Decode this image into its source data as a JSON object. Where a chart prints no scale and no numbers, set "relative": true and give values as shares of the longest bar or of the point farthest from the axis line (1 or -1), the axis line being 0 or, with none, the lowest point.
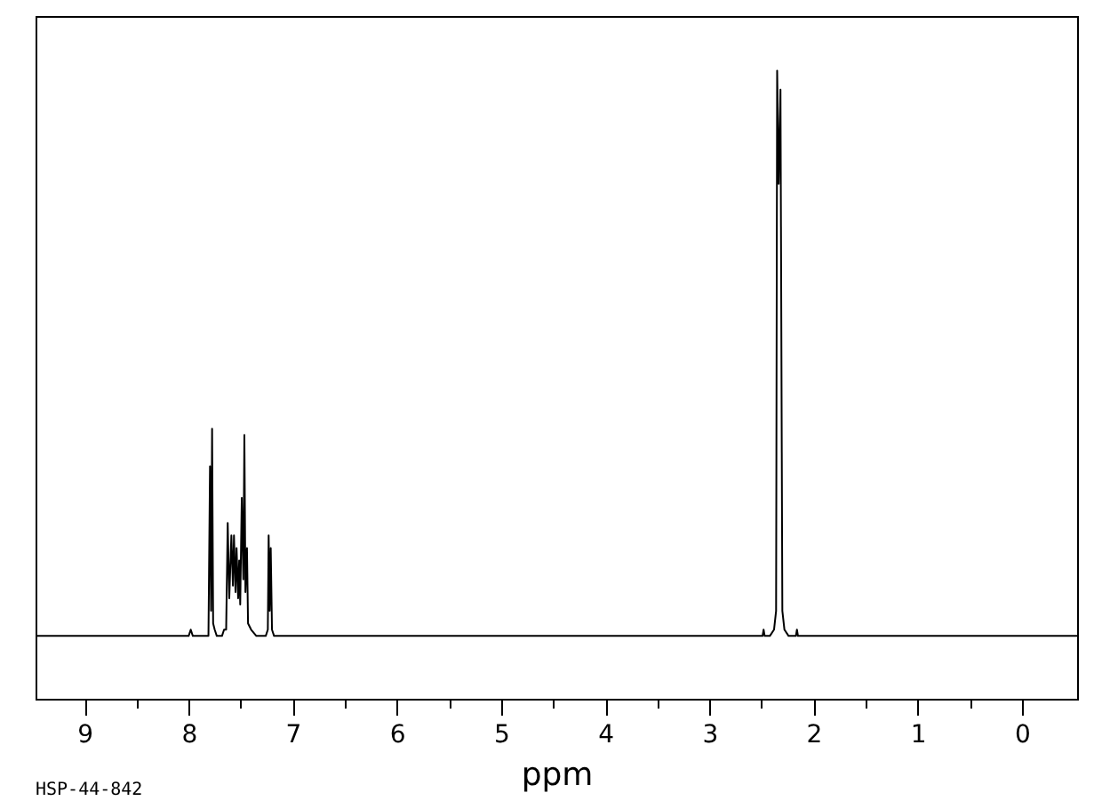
{
  "chart_data": {
    "type": "line",
    "relative": true,
    "xlabel": "ppm",
    "annotations": [
      "HSP-44-842"
    ],
    "xlim": [
      9.47,
      -0.53
    ],
    "xticks": [
      9,
      {
        "value": 8.5,
        "label": null
      },
      8,
      {
        "value": 7.5,
        "label": null
      },
      7,
      {
        "value": 6.5,
        "label": null
      },
      6,
      {
        "value": 5.5,
        "label": null
      },
      5,
      {
        "value": 4.5,
        "label": null
      },
      4,
      {
        "value": 3.5,
        "label": null
      },
      3,
      {
        "value": 2.5,
        "label": null
      },
      2,
      {
        "value": 1.5,
        "label": null
      },
      1,
      {
        "value": 0.5,
        "label": null
      },
      0
    ],
    "tick_labels": "x",
    "grid": false,
    "line_style": "solid",
    "x": [
      9.47,
      8.0,
      7.98,
      7.96,
      7.81,
      7.795,
      7.785,
      7.775,
      7.765,
      7.75,
      7.73,
      7.68,
      7.66,
      7.64,
      7.625,
      7.61,
      7.59,
      7.575,
      7.565,
      7.55,
      7.54,
      7.525,
      7.515,
      7.505,
      7.49,
      7.475,
      7.465,
      7.455,
      7.44,
      7.43,
      7.4,
      7.35,
      7.26,
      7.24,
      7.232,
      7.222,
      7.212,
      7.2,
      7.18,
      2.6,
      2.49,
      2.48,
      2.47,
      2.42,
      2.38,
      2.36,
      2.35,
      2.335,
      2.318,
      2.3,
      2.28,
      2.24,
      2.17,
      2.16,
      2.15,
      -0.53
    ],
    "series": [
      {
        "color": "#000000",
        "values": [
          0.1,
          0.1,
          0.11,
          0.1,
          0.1,
          0.37,
          0.14,
          0.43,
          0.12,
          0.11,
          0.1,
          0.1,
          0.11,
          0.11,
          0.28,
          0.16,
          0.26,
          0.18,
          0.26,
          0.17,
          0.24,
          0.16,
          0.22,
          0.15,
          0.32,
          0.19,
          0.42,
          0.17,
          0.24,
          0.12,
          0.11,
          0.1,
          0.1,
          0.11,
          0.26,
          0.14,
          0.24,
          0.11,
          0.1,
          0.1,
          0.1,
          0.11,
          0.1,
          0.1,
          0.11,
          0.14,
          1.0,
          0.82,
          0.97,
          0.14,
          0.11,
          0.1,
          0.1,
          0.11,
          0.1,
          0.1
        ]
      }
    ]
  }
}
